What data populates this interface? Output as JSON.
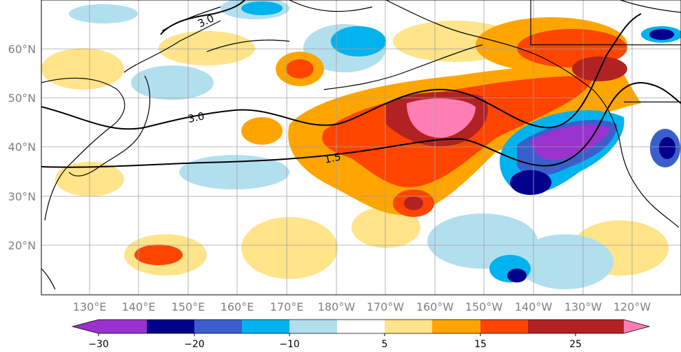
{
  "map": {
    "lat_labels": [
      "60°N",
      "50°N",
      "40°N",
      "30°N",
      "20°N"
    ],
    "lon_labels": [
      "130°E",
      "140°E",
      "150°E",
      "160°E",
      "170°E",
      "180°W",
      "170°W",
      "160°W",
      "150°W",
      "140°W",
      "130°W",
      "120°W"
    ],
    "contour_labels": [
      "3.0",
      "3.0",
      "1.5"
    ]
  },
  "colorbar": {
    "colors": [
      "#9a32cd",
      "#00008b",
      "#3a5fcd",
      "#00b2ee",
      "#b2dfee",
      "#ffffff",
      "#ffe48a",
      "#ffa500",
      "#ff4500",
      "#b22222",
      "#ff7fb4"
    ],
    "tick_labels": [
      "−30",
      "−20",
      "−10",
      "5",
      "15",
      "25"
    ]
  }
}
